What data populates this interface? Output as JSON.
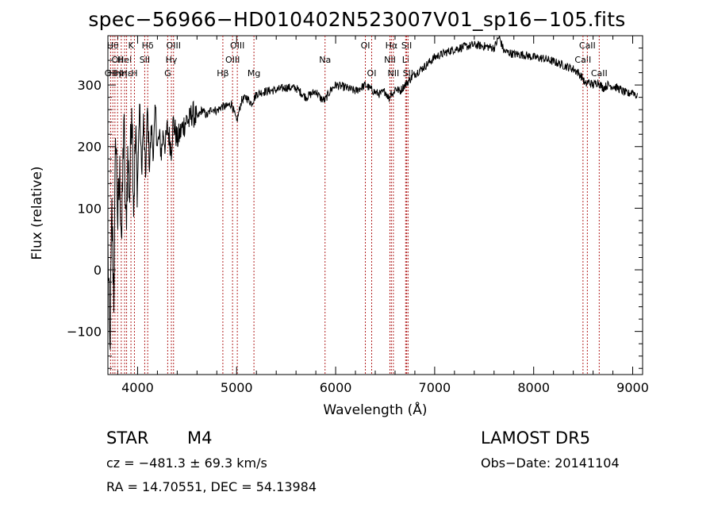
{
  "chart_data": {
    "type": "line",
    "title": "spec−56966−HD010402N523007V01_sp16−105.fits",
    "xlabel": "Wavelength (Å)",
    "ylabel": "Flux (relative)",
    "xlim": [
      3700,
      9100
    ],
    "ylim": [
      -170,
      380
    ],
    "xticks": [
      4000,
      5000,
      6000,
      7000,
      8000,
      9000
    ],
    "yticks": [
      -100,
      0,
      100,
      200,
      300
    ],
    "tick_labels_y": [
      "−100",
      "0",
      "100",
      "200",
      "300"
    ],
    "line_color": "#000000",
    "marker_color": "#b22222",
    "series": [
      {
        "x": [
          3700,
          3720,
          3740,
          3760,
          3780,
          3800,
          3820,
          3840,
          3860,
          3880,
          3900,
          3920,
          3940,
          3960,
          3980,
          4000,
          4020,
          4040,
          4060,
          4080,
          4100,
          4120,
          4140,
          4160,
          4180,
          4200,
          4220,
          4240,
          4260,
          4280,
          4300,
          4320,
          4340,
          4360,
          4380,
          4400,
          4450,
          4500,
          4520,
          4550,
          4600,
          4650,
          4700,
          4750,
          4800,
          4850,
          4900,
          4950,
          5000,
          5050,
          5100,
          5150,
          5200,
          5250,
          5300,
          5400,
          5500,
          5600,
          5700,
          5800,
          5850,
          5890,
          5950,
          6000,
          6100,
          6200,
          6300,
          6400,
          6450,
          6500,
          6540,
          6563,
          6580,
          6600,
          6650,
          6700,
          6800,
          6900,
          7000,
          7100,
          7200,
          7300,
          7400,
          7500,
          7600,
          7650,
          7700,
          7800,
          7900,
          8000,
          8100,
          8200,
          8300,
          8400,
          8450,
          8500,
          8520,
          8550,
          8600,
          8650,
          8700,
          8750,
          8800,
          8850,
          8900,
          8950,
          9000,
          9050
        ],
        "y": [
          40,
          -140,
          90,
          -40,
          230,
          80,
          150,
          50,
          250,
          60,
          180,
          120,
          290,
          110,
          210,
          140,
          270,
          160,
          240,
          150,
          260,
          170,
          230,
          190,
          260,
          200,
          215,
          190,
          225,
          200,
          230,
          215,
          195,
          240,
          225,
          210,
          230,
          245,
          240,
          255,
          245,
          260,
          250,
          262,
          258,
          265,
          265,
          270,
          240,
          275,
          280,
          270,
          285,
          288,
          290,
          292,
          296,
          295,
          280,
          290,
          278,
          275,
          292,
          300,
          296,
          290,
          300,
          288,
          285,
          290,
          278,
          290,
          283,
          295,
          290,
          300,
          318,
          330,
          345,
          352,
          358,
          362,
          365,
          363,
          360,
          378,
          355,
          350,
          349,
          345,
          343,
          338,
          332,
          326,
          320,
          310,
          300,
          305,
          300,
          305,
          295,
          300,
          298,
          295,
          290,
          285,
          290,
          280
        ]
      }
    ],
    "lines": [
      {
        "wl": 3727,
        "label": "OII",
        "row": 2
      },
      {
        "wl": 3750,
        "label": "Hθ",
        "row": 0
      },
      {
        "wl": 3771,
        "label": "Hη",
        "row": 2
      },
      {
        "wl": 3798,
        "label": "OII",
        "row": 1
      },
      {
        "wl": 3835,
        "label": "Hη",
        "row": 2
      },
      {
        "wl": 3869,
        "label": "HeI",
        "row": 1
      },
      {
        "wl": 3889,
        "label": "Hε",
        "row": 2
      },
      {
        "wl": 3933,
        "label": "K",
        "row": 0
      },
      {
        "wl": 3968,
        "label": "H",
        "row": 2
      },
      {
        "wl": 4072,
        "label": "SII",
        "row": 1
      },
      {
        "wl": 4102,
        "label": "Hδ",
        "row": 0
      },
      {
        "wl": 4304,
        "label": "G",
        "row": 2
      },
      {
        "wl": 4341,
        "label": "Hγ",
        "row": 1
      },
      {
        "wl": 4363,
        "label": "OIII",
        "row": 0
      },
      {
        "wl": 4861,
        "label": "Hβ",
        "row": 2
      },
      {
        "wl": 4959,
        "label": "OIII",
        "row": 1
      },
      {
        "wl": 5007,
        "label": "OIII",
        "row": 0
      },
      {
        "wl": 5175,
        "label": "Mg",
        "row": 2
      },
      {
        "wl": 5893,
        "label": "Na",
        "row": 1
      },
      {
        "wl": 6300,
        "label": "OI",
        "row": 0
      },
      {
        "wl": 6364,
        "label": "OI",
        "row": 2
      },
      {
        "wl": 6548,
        "label": "NII",
        "row": 1
      },
      {
        "wl": 6563,
        "label": "Hα",
        "row": 0
      },
      {
        "wl": 6583,
        "label": "NII",
        "row": 2
      },
      {
        "wl": 6707,
        "label": "Li",
        "row": 1
      },
      {
        "wl": 6717,
        "label": "SII",
        "row": 0
      },
      {
        "wl": 6731,
        "label": "SII",
        "row": 2
      },
      {
        "wl": 8498,
        "label": "CaII",
        "row": 1
      },
      {
        "wl": 8542,
        "label": "CaII",
        "row": 0
      },
      {
        "wl": 8662,
        "label": "CaII",
        "row": 2
      }
    ]
  },
  "info": {
    "class": "STAR",
    "subclass": "M4",
    "survey": "LAMOST DR5",
    "cz": "cz = −481.3 ± 69.3 km/s",
    "obs_date": "Obs−Date: 20141104",
    "coords": "RA =  14.70551, DEC =  54.13984"
  }
}
